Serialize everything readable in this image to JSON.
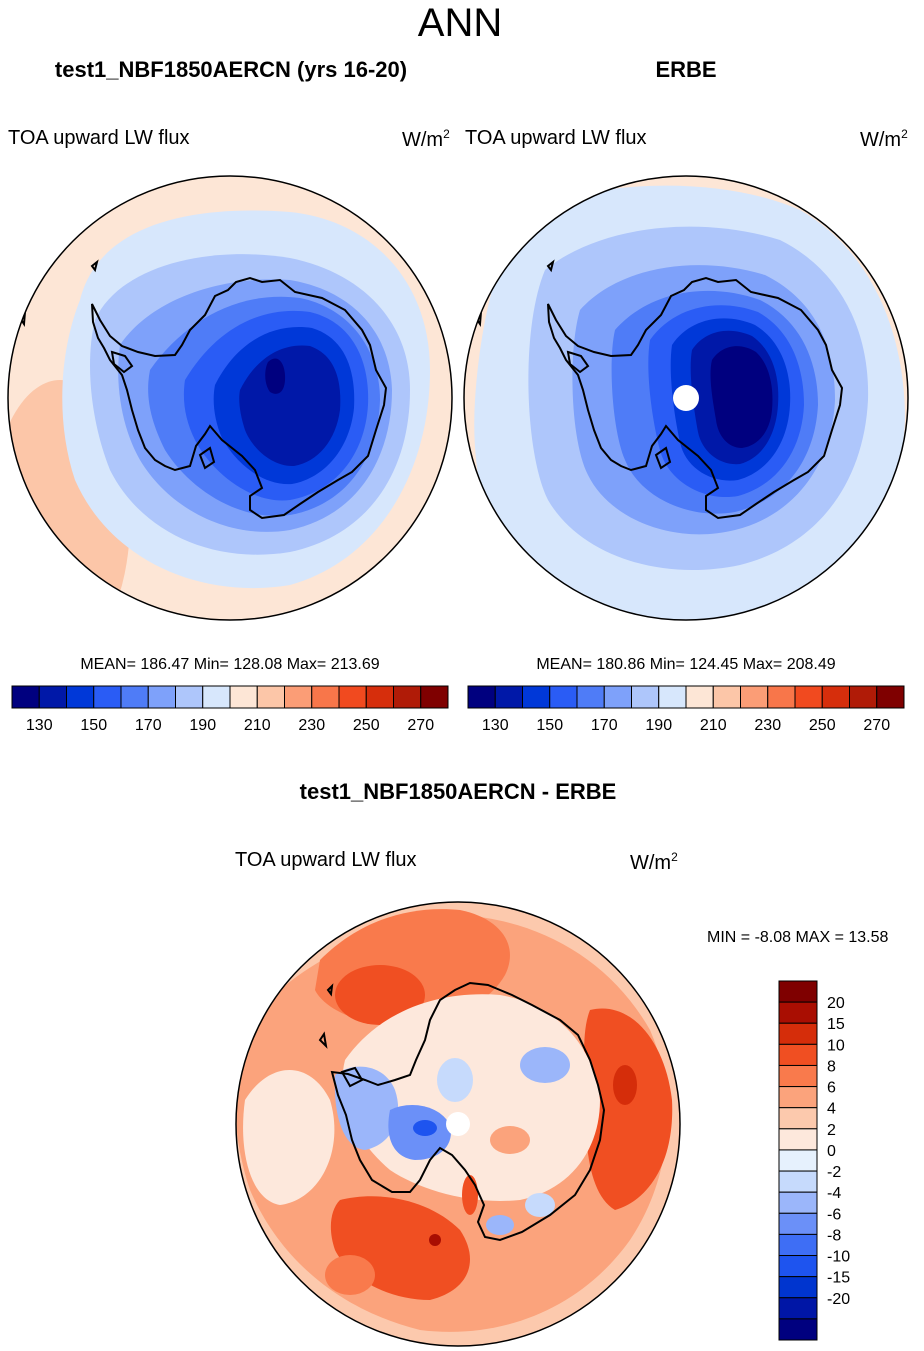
{
  "figure": {
    "title": "ANN",
    "colors": {
      "abs_scale": [
        "#00007f",
        "#0018a8",
        "#0038d8",
        "#2a5cf5",
        "#4f7cf7",
        "#7ea1fa",
        "#aec6fb",
        "#d7e7fc",
        "#fde6d6",
        "#fcc6a8",
        "#fb9d76",
        "#f8764a",
        "#f14a1f",
        "#d62e0c",
        "#b01b07",
        "#7f0000"
      ],
      "diff_scale": [
        "#00007f",
        "#0016a6",
        "#0035cf",
        "#1e54ef",
        "#3e6ef5",
        "#6b90f8",
        "#9bb6fa",
        "#c6dafc",
        "#e6f1fd",
        "#fde8dc",
        "#fcc9ad",
        "#fba37c",
        "#f97a4c",
        "#f04f22",
        "#d52d0a",
        "#a90e02",
        "#7f0000"
      ],
      "coastline": "#000000",
      "missing": "#ffffff"
    }
  },
  "chart_data": [
    {
      "type": "heatmap",
      "projection": "south-polar-stereographic",
      "title": "test1_NBF1850AERCN (yrs 16-20)",
      "variable": "TOA upward LW flux",
      "units_base": "W/m",
      "units_exp": "2",
      "stats": "MEAN= 186.47  Min= 128.08  Max= 213.69",
      "mean": 186.47,
      "min": 128.08,
      "max": 213.69,
      "contour_levels": [
        130,
        140,
        150,
        160,
        170,
        180,
        190,
        200,
        210,
        220,
        230,
        240,
        250,
        260,
        270
      ],
      "colorbar_labels": [
        "130",
        "150",
        "170",
        "190",
        "210",
        "230",
        "250",
        "270"
      ],
      "colorbar_orientation": "horizontal"
    },
    {
      "type": "heatmap",
      "projection": "south-polar-stereographic",
      "title": "ERBE",
      "variable": "TOA upward LW flux",
      "units_base": "W/m",
      "units_exp": "2",
      "stats": "MEAN= 180.86  Min= 124.45  Max= 208.49",
      "mean": 180.86,
      "min": 124.45,
      "max": 208.49,
      "contour_levels": [
        130,
        140,
        150,
        160,
        170,
        180,
        190,
        200,
        210,
        220,
        230,
        240,
        250,
        260,
        270
      ],
      "colorbar_labels": [
        "130",
        "150",
        "170",
        "190",
        "210",
        "230",
        "250",
        "270"
      ],
      "colorbar_orientation": "horizontal"
    },
    {
      "type": "heatmap",
      "projection": "south-polar-stereographic",
      "title": "test1_NBF1850AERCN - ERBE",
      "variable": "TOA upward LW flux",
      "units_base": "W/m",
      "units_exp": "2",
      "stats": "MIN =  -8.08 MAX =  13.58",
      "min": -8.08,
      "max": 13.58,
      "contour_levels": [
        -20,
        -15,
        -10,
        -8,
        -6,
        -4,
        -2,
        0,
        2,
        4,
        6,
        8,
        10,
        15,
        20
      ],
      "colorbar_labels": [
        "20",
        "15",
        "10",
        "8",
        "6",
        "4",
        "2",
        "0",
        "-2",
        "-4",
        "-6",
        "-8",
        "-10",
        "-15",
        "-20"
      ],
      "colorbar_orientation": "vertical"
    }
  ]
}
